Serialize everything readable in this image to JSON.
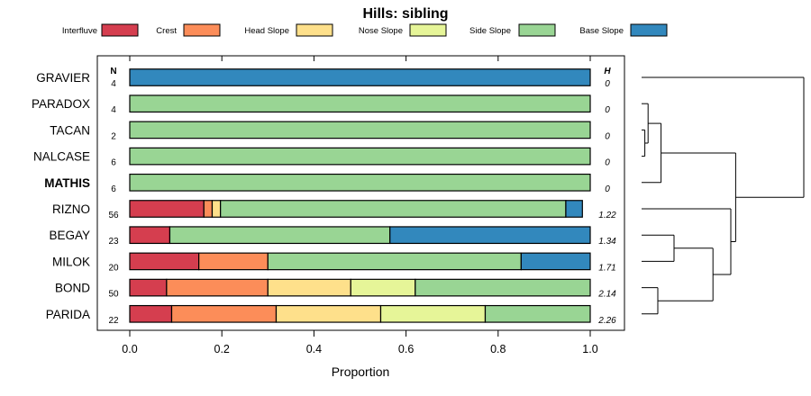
{
  "chart_data": {
    "type": "bar",
    "orientation": "horizontal",
    "stacked": true,
    "title": "Hills: sibling",
    "xlabel": "Proportion",
    "ylabel": "",
    "xlim": [
      0,
      1
    ],
    "xticks": [
      "0.0",
      "0.2",
      "0.4",
      "0.6",
      "0.8",
      "1.0"
    ],
    "xtick_values": [
      0,
      0.2,
      0.4,
      0.6,
      0.8,
      1.0
    ],
    "n_header": "N",
    "h_header": "H",
    "legend_position": "top",
    "series": [
      {
        "name": "Interfluve",
        "color": "#d53e4f"
      },
      {
        "name": "Crest",
        "color": "#fc8d59"
      },
      {
        "name": "Head Slope",
        "color": "#fee08b"
      },
      {
        "name": "Nose Slope",
        "color": "#e6f598"
      },
      {
        "name": "Side Slope",
        "color": "#99d594"
      },
      {
        "name": "Base Slope",
        "color": "#3288bd"
      }
    ],
    "categories": [
      {
        "label": "GRAVIER",
        "bold": false,
        "n": "4",
        "h": "0",
        "values": [
          0,
          0,
          0,
          0,
          0,
          1.0
        ]
      },
      {
        "label": "PARADOX",
        "bold": false,
        "n": "4",
        "h": "0",
        "values": [
          0,
          0,
          0,
          0,
          1.0,
          0
        ]
      },
      {
        "label": "TACAN",
        "bold": false,
        "n": "2",
        "h": "0",
        "values": [
          0,
          0,
          0,
          0,
          1.0,
          0
        ]
      },
      {
        "label": "NALCASE",
        "bold": false,
        "n": "6",
        "h": "0",
        "values": [
          0,
          0,
          0,
          0,
          1.0,
          0
        ]
      },
      {
        "label": "MATHIS",
        "bold": true,
        "n": "6",
        "h": "0",
        "values": [
          0,
          0,
          0,
          0,
          1.0,
          0
        ]
      },
      {
        "label": "RIZNO",
        "bold": false,
        "n": "56",
        "h": "1.22",
        "values": [
          0.161,
          0.018,
          0.018,
          0,
          0.75,
          0.036
        ]
      },
      {
        "label": "BEGAY",
        "bold": false,
        "n": "23",
        "h": "1.34",
        "values": [
          0.087,
          0,
          0,
          0,
          0.478,
          0.435
        ]
      },
      {
        "label": "MILOK",
        "bold": false,
        "n": "20",
        "h": "1.71",
        "values": [
          0.15,
          0.15,
          0,
          0,
          0.55,
          0.15
        ]
      },
      {
        "label": "BOND",
        "bold": false,
        "n": "50",
        "h": "2.14",
        "values": [
          0.08,
          0.22,
          0.18,
          0.14,
          0.38,
          0
        ]
      },
      {
        "label": "PARIDA",
        "bold": false,
        "n": "22",
        "h": "2.26",
        "values": [
          0.091,
          0.227,
          0.227,
          0.227,
          0.228,
          0
        ]
      }
    ],
    "dendrogram": {
      "leaf_order": [
        "GRAVIER",
        "PARADOX",
        "TACAN",
        "NALCASE",
        "MATHIS",
        "RIZNO",
        "BEGAY",
        "MILOK",
        "BOND",
        "PARIDA"
      ],
      "merges": [
        {
          "a": "TACAN",
          "b": "NALCASE",
          "height": 0.02
        },
        {
          "a": "PARADOX",
          "b": "cTN",
          "height": 0.04,
          "id": "cPTN"
        },
        {
          "a": "cPTN",
          "b": "MATHIS",
          "height": 0.12,
          "id": "cPTNM"
        },
        {
          "a": "BEGAY",
          "b": "MILOK",
          "height": 0.2,
          "id": "cBM"
        },
        {
          "a": "BOND",
          "b": "PARIDA",
          "height": 0.1,
          "id": "cBP"
        },
        {
          "a": "cBM",
          "b": "cBP",
          "height": 0.44,
          "id": "cBMBP"
        },
        {
          "a": "RIZNO",
          "b": "cBMBP",
          "height": 0.55,
          "id": "cR"
        },
        {
          "a": "cPTNM",
          "b": "cR",
          "height": 0.58,
          "id": "cLow"
        },
        {
          "a": "GRAVIER",
          "b": "cLow",
          "height": 1.0,
          "id": "root"
        }
      ]
    }
  }
}
